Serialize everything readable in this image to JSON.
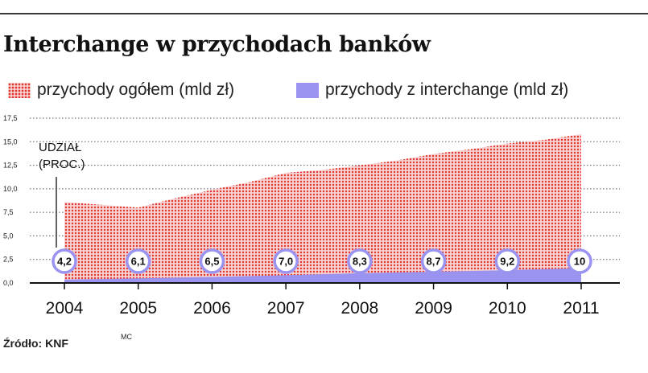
{
  "title": "Interchange w przychodach banków",
  "source": "Źródło: KNF",
  "author": "MC",
  "colors": {
    "total_dots": "#e2342c",
    "total_bg": "#f6d3d3",
    "interchange": "#9a94f0",
    "circle_stroke": "#9a94f0"
  },
  "chart_data": {
    "type": "area",
    "title": "Interchange w przychodach banków",
    "xlabel": "",
    "ylabel": "",
    "legend_position": "top",
    "grid": true,
    "ylim": [
      0,
      17.5
    ],
    "yticks": [
      "0,0",
      "2,5",
      "5,0",
      "7,5",
      "10,0",
      "12,5",
      "15,0",
      "17,5"
    ],
    "x": [
      "2004",
      "2005",
      "2006",
      "2007",
      "2008",
      "2009",
      "2010",
      "2011"
    ],
    "series": [
      {
        "name": "przychody ogółem (mld zł)",
        "points": [
          {
            "x": 2004.0,
            "y": 8.6
          },
          {
            "x": 2004.5,
            "y": 8.3
          },
          {
            "x": 2005.0,
            "y": 8.0
          },
          {
            "x": 2005.5,
            "y": 9.0
          },
          {
            "x": 2006.0,
            "y": 9.9
          },
          {
            "x": 2006.5,
            "y": 10.7
          },
          {
            "x": 2007.0,
            "y": 11.7
          },
          {
            "x": 2007.5,
            "y": 12.0
          },
          {
            "x": 2008.0,
            "y": 12.5
          },
          {
            "x": 2008.5,
            "y": 13.0
          },
          {
            "x": 2009.0,
            "y": 13.7
          },
          {
            "x": 2009.5,
            "y": 14.2
          },
          {
            "x": 2010.0,
            "y": 14.8
          },
          {
            "x": 2010.5,
            "y": 15.2
          },
          {
            "x": 2011.0,
            "y": 15.8
          }
        ]
      },
      {
        "name": "przychody z interchange (mld zł)",
        "points": [
          {
            "x": 2004.0,
            "y": 0.36
          },
          {
            "x": 2005.0,
            "y": 0.49
          },
          {
            "x": 2006.0,
            "y": 0.64
          },
          {
            "x": 2007.0,
            "y": 0.82
          },
          {
            "x": 2008.0,
            "y": 1.04
          },
          {
            "x": 2009.0,
            "y": 1.19
          },
          {
            "x": 2010.0,
            "y": 1.36
          },
          {
            "x": 2011.0,
            "y": 1.58
          }
        ]
      }
    ],
    "share_title": [
      "UDZIAŁ",
      "(PROC.)"
    ],
    "share_labels": [
      "4,2",
      "6,1",
      "6,5",
      "7,0",
      "8,3",
      "8,7",
      "9,2",
      "10"
    ]
  }
}
